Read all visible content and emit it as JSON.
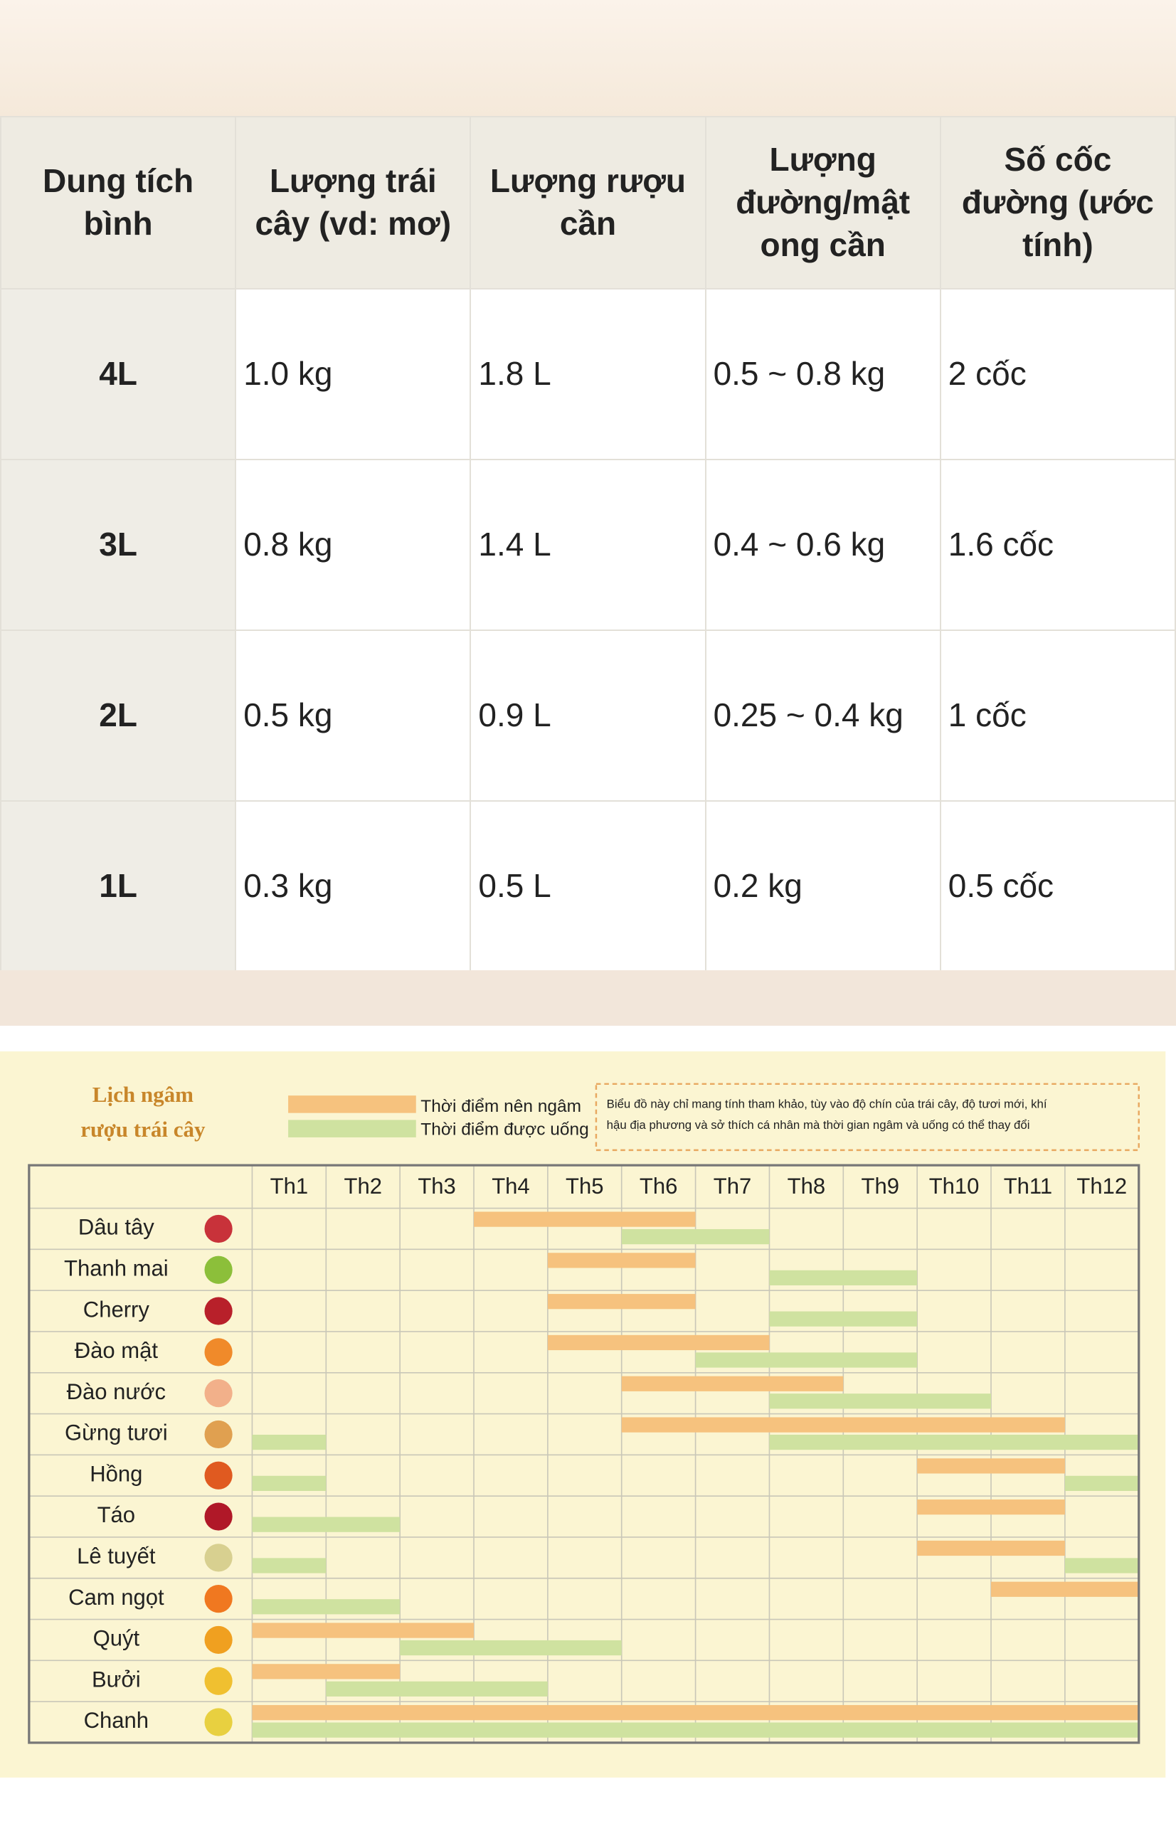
{
  "table": {
    "header": [
      "Dung tích bình",
      "Lượng trái cây (vd: mơ)",
      "Lượng rượu cần",
      "Lượng đường/mật ong cần",
      "Số cốc đường (ước tính)"
    ],
    "rows": [
      [
        "4L",
        "1.0 kg",
        "1.8 L",
        "0.5 ~ 0.8 kg",
        "2 cốc"
      ],
      [
        "3L",
        "0.8 kg",
        "1.4 L",
        "0.4 ~ 0.6 kg",
        "1.6 cốc"
      ],
      [
        "2L",
        "0.5 kg",
        "0.9 L",
        "0.25 ~ 0.4 kg",
        "1 cốc"
      ],
      [
        "1L",
        "0.3 kg",
        "0.5 L",
        "0.2 kg",
        "0.5 cốc"
      ]
    ]
  },
  "calendar": {
    "title": [
      "Lịch ngâm",
      "rượu trái cây"
    ],
    "legend": {
      "soak": "Thời điểm nên ngâm",
      "drink": "Thời điểm được uống"
    },
    "note": [
      "Biểu đồ này chỉ mang tính tham khảo, tùy vào độ chín của trái cây, độ tươi mới, khí",
      "hậu địa phương và sở thích cá nhân mà thời gian ngâm và uống có thể thay đổi"
    ],
    "months": [
      "Th1",
      "Th2",
      "Th3",
      "Th4",
      "Th5",
      "Th6",
      "Th7",
      "Th8",
      "Th9",
      "Th10",
      "Th11",
      "Th12"
    ],
    "fruits": [
      {
        "name": "Dâu tây",
        "soak": [
          [
            4,
            6
          ]
        ],
        "drink": [
          [
            6,
            7
          ]
        ]
      },
      {
        "name": "Thanh mai",
        "soak": [
          [
            5,
            6
          ]
        ],
        "drink": [
          [
            8,
            9
          ]
        ]
      },
      {
        "name": "Cherry",
        "soak": [
          [
            5,
            6
          ]
        ],
        "drink": [
          [
            8,
            9
          ]
        ]
      },
      {
        "name": "Đào mật",
        "soak": [
          [
            5,
            7
          ]
        ],
        "drink": [
          [
            7,
            9
          ]
        ]
      },
      {
        "name": "Đào nước",
        "soak": [
          [
            6,
            8
          ]
        ],
        "drink": [
          [
            8,
            10
          ]
        ]
      },
      {
        "name": "Gừng tươi",
        "soak": [
          [
            6,
            11
          ]
        ],
        "drink": [
          [
            1,
            1
          ],
          [
            8,
            12
          ]
        ]
      },
      {
        "name": "Hồng",
        "soak": [
          [
            10,
            11
          ]
        ],
        "drink": [
          [
            1,
            1
          ],
          [
            12,
            12
          ]
        ]
      },
      {
        "name": "Táo",
        "soak": [
          [
            10,
            11
          ]
        ],
        "drink": [
          [
            1,
            2
          ]
        ]
      },
      {
        "name": "Lê tuyết",
        "soak": [
          [
            10,
            11
          ]
        ],
        "drink": [
          [
            1,
            1
          ],
          [
            12,
            12
          ]
        ]
      },
      {
        "name": "Cam ngọt",
        "soak": [
          [
            11,
            12
          ]
        ],
        "drink": [
          [
            1,
            2
          ]
        ]
      },
      {
        "name": "Quýt",
        "soak": [
          [
            1,
            3
          ]
        ],
        "drink": [
          [
            3,
            5
          ]
        ]
      },
      {
        "name": "Bưởi",
        "soak": [
          [
            1,
            2
          ]
        ],
        "drink": [
          [
            2,
            4
          ]
        ]
      },
      {
        "name": "Chanh",
        "soak": [
          [
            1,
            12
          ]
        ],
        "drink": [
          [
            1,
            12
          ]
        ]
      }
    ]
  }
}
